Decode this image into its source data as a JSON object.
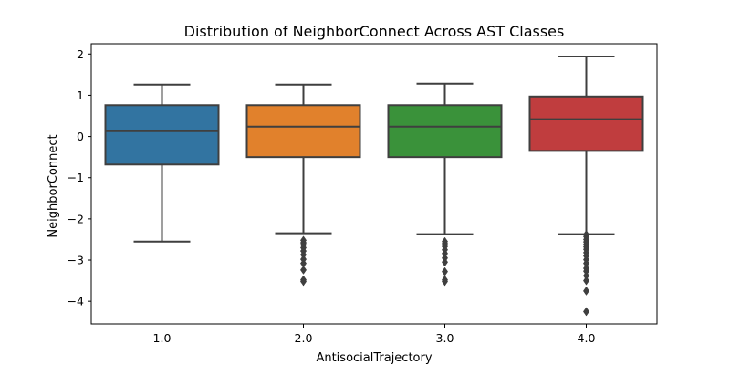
{
  "chart_data": {
    "type": "boxplot",
    "title": "Distribution of NeighborConnect Across AST Classes",
    "xlabel": "AntisocialTrajectory",
    "ylabel": "NeighborConnect",
    "ylim": [
      -4.55,
      2.25
    ],
    "yticks": [
      {
        "value": 2,
        "label": "2"
      },
      {
        "value": 1,
        "label": "1"
      },
      {
        "value": 0,
        "label": "0"
      },
      {
        "value": -1,
        "label": "−1"
      },
      {
        "value": -2,
        "label": "−2"
      },
      {
        "value": -3,
        "label": "−3"
      },
      {
        "value": -4,
        "label": "−4"
      }
    ],
    "grid": false,
    "categories": [
      "1.0",
      "2.0",
      "3.0",
      "4.0"
    ],
    "series": [
      {
        "category": "1.0",
        "color": "#3274a1",
        "whisker_low": -2.55,
        "q1": -0.68,
        "median": 0.13,
        "q3": 0.76,
        "whisker_high": 1.26,
        "outliers": []
      },
      {
        "category": "2.0",
        "color": "#e1812c",
        "whisker_low": -2.35,
        "q1": -0.5,
        "median": 0.24,
        "q3": 0.76,
        "whisker_high": 1.26,
        "outliers": [
          -2.52,
          -2.58,
          -2.63,
          -2.7,
          -2.78,
          -2.87,
          -2.98,
          -3.08,
          -3.24,
          -3.48,
          -3.52
        ]
      },
      {
        "category": "3.0",
        "color": "#3a923a",
        "whisker_low": -2.37,
        "q1": -0.5,
        "median": 0.24,
        "q3": 0.76,
        "whisker_high": 1.28,
        "outliers": [
          -2.55,
          -2.6,
          -2.67,
          -2.75,
          -2.84,
          -2.95,
          -3.05,
          -3.28,
          -3.48,
          -3.52
        ]
      },
      {
        "category": "4.0",
        "color": "#c03d3e",
        "whisker_low": -2.37,
        "q1": -0.35,
        "median": 0.42,
        "q3": 0.97,
        "whisker_high": 1.94,
        "outliers": [
          -2.38,
          -2.43,
          -2.5,
          -2.56,
          -2.62,
          -2.68,
          -2.74,
          -2.82,
          -2.9,
          -2.99,
          -3.08,
          -3.2,
          -3.27,
          -3.38,
          -3.5,
          -3.75,
          -4.25
        ]
      }
    ]
  }
}
